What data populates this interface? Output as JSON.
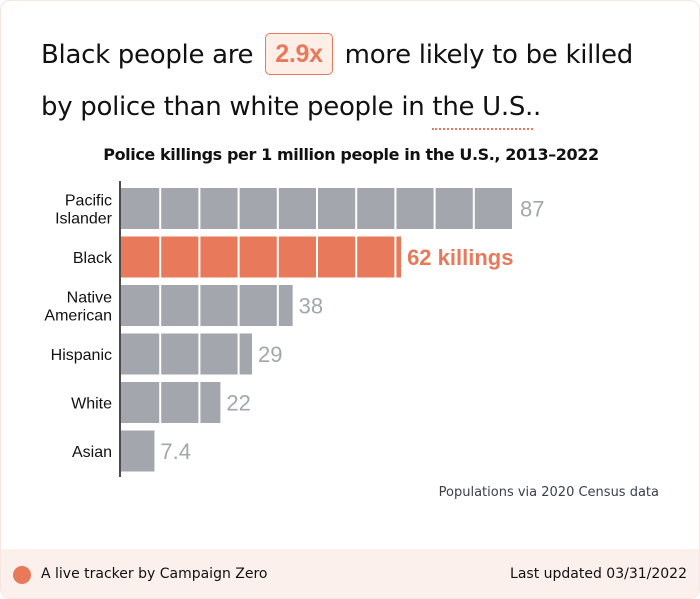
{
  "headline": {
    "part1": "Black people are",
    "highlight": "2.9x",
    "part2": "more likely to be killed",
    "part3": "by police than white people in",
    "location": "the U.S.",
    "end": "."
  },
  "note": "Populations via 2020 Census data",
  "footer": {
    "left": "A live tracker by Campaign Zero",
    "right": "Last updated 03/31/2022"
  },
  "colors": {
    "accent": "#e8795a",
    "bar": "#a3a6ad",
    "value_text": "#a3a6ad"
  },
  "chart_data": {
    "type": "bar",
    "orientation": "horizontal",
    "title": "Police killings per 1 million people in the U.S., 2013–2022",
    "xlabel": "",
    "ylabel": "",
    "xlim": [
      0,
      87
    ],
    "grid": false,
    "categories": [
      [
        "Pacific",
        "Islander"
      ],
      [
        "Black"
      ],
      [
        "Native",
        "American"
      ],
      [
        "Hispanic"
      ],
      [
        "White"
      ],
      [
        "Asian"
      ]
    ],
    "values": [
      87,
      62,
      38,
      29,
      22,
      7.4
    ],
    "value_labels": [
      "87",
      "62 killings",
      "38",
      "29",
      "22",
      "7.4"
    ],
    "highlight_index": 1
  }
}
